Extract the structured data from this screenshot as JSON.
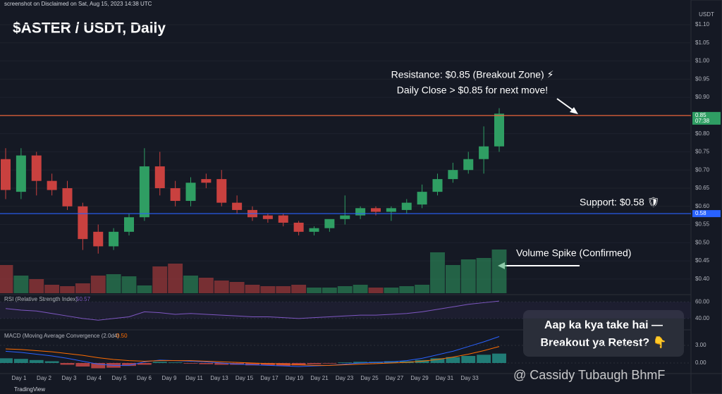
{
  "chart_data": {
    "type": "candlestick",
    "header": "screenshot on Disclaimed on Sat, Aug 15, 2023 14:38 UTC",
    "title": "$ASTER / USDT, Daily",
    "axis_unit": "USDT",
    "ylim": [
      0.36,
      1.13
    ],
    "yticks": [
      {
        "value": 1.1,
        "label": "$1.10"
      },
      {
        "value": 1.05,
        "label": "$1.05"
      },
      {
        "value": 1.0,
        "label": "$1.00"
      },
      {
        "value": 0.95,
        "label": "$0.95"
      },
      {
        "value": 0.9,
        "label": "$0.90"
      },
      {
        "value": 0.85,
        "label": "$0.85"
      },
      {
        "value": 0.8,
        "label": "$0.80"
      },
      {
        "value": 0.75,
        "label": "$0.75"
      },
      {
        "value": 0.7,
        "label": "$0.70"
      },
      {
        "value": 0.65,
        "label": "$0.65"
      },
      {
        "value": 0.6,
        "label": "$0.60"
      },
      {
        "value": 0.55,
        "label": "$0.55"
      },
      {
        "value": 0.5,
        "label": "$0.50"
      },
      {
        "value": 0.45,
        "label": "$0.45"
      },
      {
        "value": 0.4,
        "label": "$0.40"
      }
    ],
    "x_labels": [
      "Day 1",
      "Day 2",
      "Day 3",
      "Day 4",
      "Day 5",
      "Day 6",
      "Day 9",
      "Day 11",
      "Day 13",
      "Day 15",
      "Day 17",
      "Day 19",
      "Day 21",
      "Day 23",
      "Day 25",
      "Day 27",
      "Day 29",
      "Day 31",
      "Day 33"
    ],
    "up_color": "#2f9e63",
    "down_color": "#c9413f",
    "open": [
      0.73,
      0.64,
      0.74,
      0.67,
      0.65,
      0.6,
      0.53,
      0.49,
      0.53,
      0.57,
      0.71,
      0.65,
      0.615,
      0.675,
      0.675,
      0.61,
      0.59,
      0.575,
      0.575,
      0.555,
      0.53,
      0.54,
      0.565,
      0.575,
      0.595,
      0.585,
      0.59,
      0.605,
      0.64,
      0.675,
      0.7,
      0.73,
      0.765
    ],
    "high": [
      0.76,
      0.76,
      0.75,
      0.69,
      0.67,
      0.61,
      0.55,
      0.54,
      0.58,
      0.76,
      0.75,
      0.67,
      0.68,
      0.69,
      0.7,
      0.63,
      0.6,
      0.58,
      0.58,
      0.56,
      0.545,
      0.56,
      0.63,
      0.6,
      0.6,
      0.6,
      0.62,
      0.66,
      0.69,
      0.72,
      0.75,
      0.82,
      0.87
    ],
    "low": [
      0.62,
      0.62,
      0.63,
      0.63,
      0.59,
      0.48,
      0.47,
      0.48,
      0.52,
      0.56,
      0.63,
      0.6,
      0.6,
      0.65,
      0.6,
      0.58,
      0.56,
      0.555,
      0.545,
      0.52,
      0.52,
      0.53,
      0.55,
      0.565,
      0.575,
      0.56,
      0.58,
      0.595,
      0.63,
      0.665,
      0.69,
      0.69,
      0.75
    ],
    "close": [
      0.645,
      0.74,
      0.67,
      0.645,
      0.6,
      0.51,
      0.49,
      0.53,
      0.57,
      0.71,
      0.65,
      0.615,
      0.665,
      0.665,
      0.61,
      0.59,
      0.57,
      0.565,
      0.555,
      0.53,
      0.54,
      0.565,
      0.575,
      0.595,
      0.585,
      0.595,
      0.61,
      0.64,
      0.675,
      0.7,
      0.73,
      0.765,
      0.855
    ],
    "volume": [
      40,
      25,
      20,
      12,
      10,
      14,
      25,
      27,
      24,
      11,
      38,
      42,
      25,
      22,
      18,
      16,
      12,
      10,
      10,
      12,
      8,
      8,
      10,
      12,
      8,
      8,
      10,
      12,
      58,
      40,
      48,
      50,
      62
    ],
    "levels": [
      {
        "name": "Resistance",
        "value": 0.85,
        "color": "#e8643a",
        "tag": "0.85",
        "tag_sub": "07:38"
      },
      {
        "name": "Support",
        "value": 0.58,
        "color": "#2962ff",
        "tag": "0.58"
      }
    ],
    "annotations": {
      "resistance_1": "Resistance: $0.85 (Breakout Zone) ⚡",
      "resistance_2": "Daily Close > $0.85 for next move!",
      "support": "Support: $0.58 🛡",
      "volume": "Volume Spike (Confirmed)"
    },
    "rsi": {
      "label": "RSI (Relative Strength Index)",
      "value_text": "50.57",
      "color": "#7e57c2",
      "ylim": [
        28,
        67
      ],
      "yticks": [
        {
          "value": 60,
          "label": "60.00"
        },
        {
          "value": 40,
          "label": "40.00"
        }
      ],
      "values": [
        52,
        50,
        49,
        46,
        43,
        40,
        38,
        40,
        42,
        48,
        47,
        45,
        46,
        45,
        44,
        43,
        42,
        42,
        41,
        40,
        41,
        42,
        43,
        44,
        44,
        45,
        46,
        48,
        51,
        54,
        57,
        59,
        61
      ]
    },
    "macd": {
      "label": "MACD (Moving Average Convergence (2.0d4)",
      "value_text": "0.50",
      "macd_color": "#2962ff",
      "signal_color": "#ff6d00",
      "ylim": [
        -1.8,
        5.4
      ],
      "yticks": [
        {
          "value": 3,
          "label": "3.00"
        },
        {
          "value": 0,
          "label": "0.00"
        }
      ],
      "macd_line": [
        2.0,
        1.8,
        1.5,
        1.2,
        0.8,
        0.3,
        -0.2,
        -0.4,
        -0.4,
        0.2,
        0.5,
        0.4,
        0.3,
        0.2,
        0.0,
        -0.2,
        -0.3,
        -0.4,
        -0.5,
        -0.6,
        -0.5,
        -0.4,
        -0.2,
        0.0,
        0.1,
        0.2,
        0.4,
        0.8,
        1.4,
        2.0,
        2.8,
        3.6,
        4.5
      ],
      "signal_line": [
        2.4,
        2.3,
        2.1,
        1.9,
        1.6,
        1.3,
        0.9,
        0.6,
        0.4,
        0.3,
        0.4,
        0.4,
        0.4,
        0.3,
        0.2,
        0.1,
        0.0,
        -0.1,
        -0.2,
        -0.3,
        -0.4,
        -0.4,
        -0.3,
        -0.2,
        -0.1,
        0.0,
        0.1,
        0.3,
        0.6,
        1.0,
        1.5,
        2.1,
        2.8
      ],
      "hist": [
        0.8,
        0.7,
        0.5,
        0.3,
        -0.3,
        -0.6,
        -0.9,
        -0.8,
        -0.5,
        -0.3,
        0.2,
        0.1,
        -0.1,
        -0.2,
        -0.3,
        -0.3,
        -0.4,
        -0.4,
        -0.5,
        -0.4,
        -0.2,
        -0.1,
        0.1,
        0.2,
        0.2,
        0.3,
        0.3,
        0.5,
        0.8,
        1.0,
        1.2,
        1.4,
        1.6
      ]
    },
    "callout": [
      "Aap ka kya take hai —",
      "Breakout ya Retest? 👇"
    ],
    "watermark": "@ Cassidy Tubaugh BhmF",
    "footer": "TradingView"
  }
}
